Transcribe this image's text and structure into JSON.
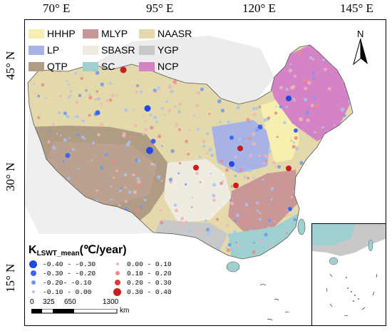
{
  "axes": {
    "lon_ticks": [
      "70° E",
      "95° E",
      "120° E",
      "145° E"
    ],
    "lat_ticks": [
      "45° N",
      "30° N",
      "15° N"
    ]
  },
  "regions": [
    {
      "code": "HHHP",
      "color": "#f5f0b0"
    },
    {
      "code": "MLYP",
      "color": "#c99797"
    },
    {
      "code": "NAASR",
      "color": "#e3d9ab"
    },
    {
      "code": "LP",
      "color": "#a7b3e6"
    },
    {
      "code": "SBASR",
      "color": "#f0ebe1"
    },
    {
      "code": "YGP",
      "color": "#c8c8c8"
    },
    {
      "code": "QTP",
      "color": "#b09c85"
    },
    {
      "code": "SC",
      "color": "#9fcfcf"
    },
    {
      "code": "NCP",
      "color": "#d484c6"
    }
  ],
  "trend_legend": {
    "title_main": "K",
    "title_sub": "LSWT_mean",
    "title_unit": "(℃/year)",
    "classes": [
      {
        "range": "-0.40 - -0.30",
        "color": "#2149e0",
        "size": 11
      },
      {
        "range": "-0.30 - -0.20",
        "color": "#3f66e8",
        "size": 8
      },
      {
        "range": "-0.20- -0.10",
        "color": "#6f96ee",
        "size": 6
      },
      {
        "range": "-0.10 - 0.00",
        "color": "#a6c4f4",
        "size": 4
      },
      {
        "range": "0.00 - 0.10",
        "color": "#f0b4b4",
        "size": 4
      },
      {
        "range": "0.10 - 0.20",
        "color": "#ea8a8a",
        "size": 6
      },
      {
        "range": "0.20 - 0.30",
        "color": "#de3a3a",
        "size": 8
      },
      {
        "range": "0.30 - 0.40",
        "color": "#c81e1e",
        "size": 11
      }
    ]
  },
  "scale_bar": {
    "labels": [
      "0",
      "325",
      "650",
      "1300"
    ],
    "unit": "km"
  },
  "north_arrow": {
    "label": "N"
  }
}
